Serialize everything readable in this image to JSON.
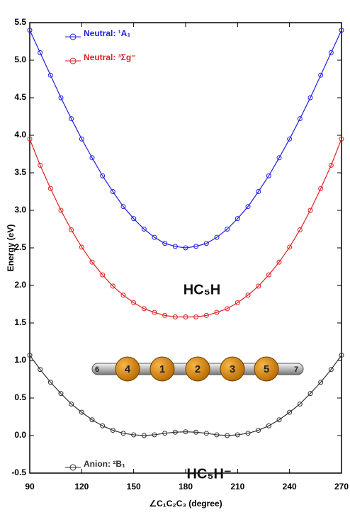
{
  "chart_data": {
    "type": "line",
    "ylabel": "Energy (eV)",
    "xlabel": "∠C₁C₂C₃ (degree)",
    "x": [
      90,
      96,
      102,
      108,
      114,
      120,
      126,
      132,
      138,
      144,
      150,
      156,
      162,
      168,
      174,
      180,
      186,
      192,
      198,
      204,
      210,
      216,
      222,
      228,
      234,
      240,
      246,
      252,
      258,
      264,
      270
    ],
    "series": [
      {
        "name": "Neutral: ¹A₁",
        "color": "#2020e0",
        "values": [
          5.4,
          5.1,
          4.8,
          4.5,
          4.22,
          3.95,
          3.7,
          3.46,
          3.25,
          3.05,
          2.89,
          2.75,
          2.64,
          2.56,
          2.52,
          2.5,
          2.52,
          2.56,
          2.64,
          2.75,
          2.89,
          3.05,
          3.25,
          3.46,
          3.7,
          3.95,
          4.22,
          4.5,
          4.8,
          5.1,
          5.4
        ]
      },
      {
        "name": "Neutral: ³Σg⁻",
        "color": "#e02020",
        "values": [
          3.95,
          3.6,
          3.29,
          3.0,
          2.74,
          2.51,
          2.31,
          2.14,
          1.99,
          1.87,
          1.77,
          1.69,
          1.64,
          1.6,
          1.58,
          1.58,
          1.58,
          1.6,
          1.64,
          1.69,
          1.77,
          1.87,
          1.99,
          2.14,
          2.31,
          2.51,
          2.74,
          3.0,
          3.29,
          3.6,
          3.95
        ]
      },
      {
        "name": "Anion: ²B₁",
        "color": "#303030",
        "values": [
          1.07,
          0.88,
          0.71,
          0.56,
          0.42,
          0.31,
          0.21,
          0.13,
          0.07,
          0.03,
          0.01,
          0,
          0.01,
          0.03,
          0.045,
          0.05,
          0.045,
          0.03,
          0.01,
          0,
          0.01,
          0.03,
          0.07,
          0.13,
          0.21,
          0.31,
          0.42,
          0.56,
          0.71,
          0.88,
          1.07
        ]
      }
    ],
    "xlim": [
      90,
      270
    ],
    "xticks": [
      90,
      120,
      150,
      180,
      210,
      240,
      270
    ],
    "ylim": [
      -0.5,
      5.5
    ],
    "yticks": [
      -0.5,
      {
        "value": 0,
        "label": "0.0"
      },
      0.5,
      {
        "value": 1,
        "label": "1.0"
      },
      1.5,
      {
        "value": 2,
        "label": "2.0"
      },
      2.5,
      {
        "value": 3,
        "label": "3.0"
      },
      3.5,
      {
        "value": 4,
        "label": "4.0"
      },
      4.5,
      {
        "value": 5,
        "label": "5.0"
      },
      5.5
    ],
    "annotations": [
      "HC₅H",
      "HC₅H⁻"
    ],
    "atom_labels": [
      "6",
      "4",
      "1",
      "2",
      "3",
      "5",
      "7"
    ]
  }
}
